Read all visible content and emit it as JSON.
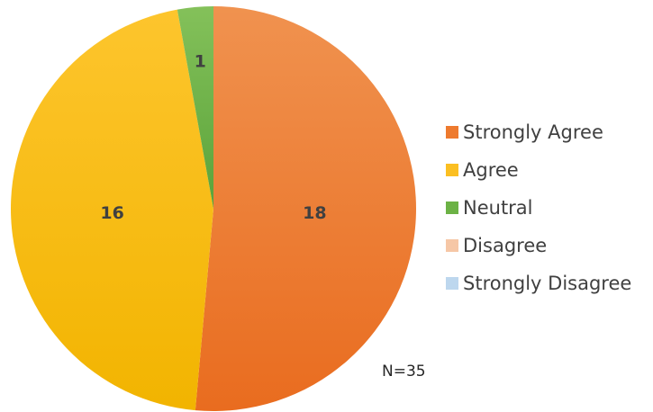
{
  "chart_data": {
    "type": "pie",
    "title": "",
    "categories": [
      "Strongly Agree",
      "Agree",
      "Neutral",
      "Disagree",
      "Strongly Disagree"
    ],
    "values": [
      18,
      16,
      1,
      0,
      0
    ],
    "colors": [
      "#ee7a2e",
      "#fbbf22",
      "#6cb245",
      "#f6c7a6",
      "#bdd7ee"
    ],
    "data_labels": [
      "18",
      "16",
      "1",
      "",
      ""
    ],
    "legend": {
      "entries": [
        "Strongly Agree",
        "Agree",
        "Neutral",
        "Disagree",
        "Strongly Disagree"
      ],
      "placement": "right"
    },
    "annotation": "N=35"
  }
}
